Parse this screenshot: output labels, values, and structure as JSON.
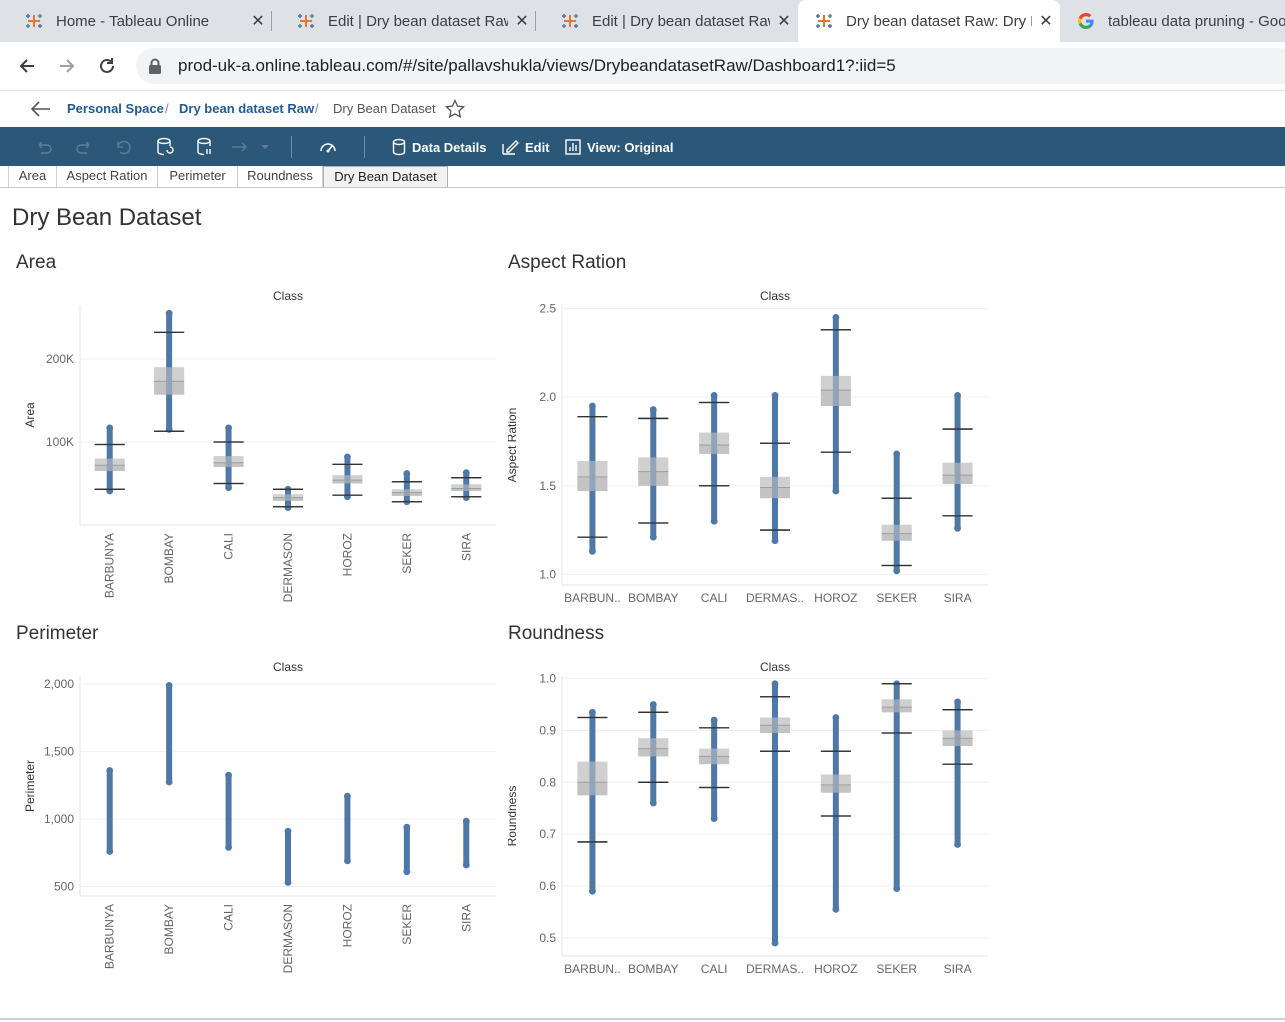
{
  "browser": {
    "tabs": [
      {
        "title": "Home - Tableau Online",
        "icon": "tableau-icon",
        "active": false
      },
      {
        "title": "Edit | Dry bean dataset Raw",
        "icon": "tableau-icon",
        "active": false
      },
      {
        "title": "Edit | Dry bean dataset Raw",
        "icon": "tableau-icon",
        "active": false
      },
      {
        "title": "Dry bean dataset Raw: Dry Bean Dataset",
        "icon": "tableau-icon",
        "active": true
      },
      {
        "title": "tableau data pruning - Google Search",
        "icon": "google-icon",
        "active": false
      }
    ],
    "url": "prod-uk-a.online.tableau.com/#/site/pallavshukla/views/DrybeandatasetRaw/Dashboard1?:iid=5"
  },
  "breadcrumb": {
    "items": [
      "Personal Space",
      "Dry bean dataset Raw",
      "Dry Bean Dataset"
    ]
  },
  "toolbar": {
    "data_details": "Data Details",
    "edit": "Edit",
    "view": "View: Original"
  },
  "sheet_tabs": [
    "Area",
    "Aspect Ration",
    "Perimeter",
    "Roundness",
    "Dry Bean Dataset"
  ],
  "dashboard": {
    "title": "Dry Bean Dataset"
  },
  "colors": {
    "tableau_bar": "#2b5879",
    "mark": "#4e79a7",
    "link": "#1f5b99"
  },
  "chart_data": [
    {
      "type": "scatter",
      "title": "Area",
      "header": "Class",
      "ylabel": "Area",
      "categories": [
        "BARBUNYA",
        "BOMBAY",
        "CALI",
        "DERMASON",
        "HOROZ",
        "SEKER",
        "SIRA"
      ],
      "yticks": [
        {
          "v": 100000,
          "label": "100K"
        },
        {
          "v": 200000,
          "label": "200K"
        }
      ],
      "ylim": [
        0,
        265000
      ],
      "ranges": [
        [
          41000,
          117000
        ],
        [
          115000,
          255000
        ],
        [
          45000,
          117000
        ],
        [
          21000,
          43000
        ],
        [
          34000,
          82000
        ],
        [
          28000,
          62000
        ],
        [
          33000,
          63000
        ]
      ],
      "boxplot": [
        {
          "q1": 65000,
          "median": 72000,
          "q3": 80000,
          "wl": 43000,
          "wh": 97000
        },
        {
          "q1": 157000,
          "median": 173000,
          "q3": 190000,
          "wl": 113000,
          "wh": 232000
        },
        {
          "q1": 70000,
          "median": 75000,
          "q3": 83000,
          "wl": 50000,
          "wh": 100000
        },
        {
          "q1": 29000,
          "median": 33000,
          "q3": 37000,
          "wl": 22000,
          "wh": 43000
        },
        {
          "q1": 50000,
          "median": 54000,
          "q3": 60000,
          "wl": 36000,
          "wh": 73000
        },
        {
          "q1": 35000,
          "median": 39000,
          "q3": 43000,
          "wl": 28000,
          "wh": 52000
        },
        {
          "q1": 41000,
          "median": 44000,
          "q3": 49000,
          "wl": 34000,
          "wh": 57000
        }
      ]
    },
    {
      "type": "scatter",
      "title": "Aspect Ration",
      "header": "Class",
      "ylabel": "Aspect Ration",
      "categories": [
        "BARBUN..",
        "BOMBAY",
        "CALI",
        "DERMAS..",
        "HOROZ",
        "SEKER",
        "SIRA"
      ],
      "yticks": [
        {
          "v": 1.0,
          "label": "1.0"
        },
        {
          "v": 1.5,
          "label": "1.5"
        },
        {
          "v": 2.0,
          "label": "2.0"
        },
        {
          "v": 2.5,
          "label": "2.5"
        }
      ],
      "ylim": [
        0.94,
        2.52
      ],
      "ranges": [
        [
          1.13,
          1.95
        ],
        [
          1.21,
          1.93
        ],
        [
          1.3,
          2.01
        ],
        [
          1.19,
          2.01
        ],
        [
          1.47,
          2.45
        ],
        [
          1.02,
          1.68
        ],
        [
          1.26,
          2.01
        ]
      ],
      "boxplot": [
        {
          "q1": 1.47,
          "median": 1.55,
          "q3": 1.64,
          "wl": 1.21,
          "wh": 1.89
        },
        {
          "q1": 1.5,
          "median": 1.58,
          "q3": 1.66,
          "wl": 1.29,
          "wh": 1.88
        },
        {
          "q1": 1.68,
          "median": 1.73,
          "q3": 1.8,
          "wl": 1.5,
          "wh": 1.97
        },
        {
          "q1": 1.43,
          "median": 1.49,
          "q3": 1.55,
          "wl": 1.25,
          "wh": 1.74
        },
        {
          "q1": 1.95,
          "median": 2.04,
          "q3": 2.12,
          "wl": 1.69,
          "wh": 2.38
        },
        {
          "q1": 1.19,
          "median": 1.23,
          "q3": 1.28,
          "wl": 1.05,
          "wh": 1.43
        },
        {
          "q1": 1.51,
          "median": 1.56,
          "q3": 1.63,
          "wl": 1.33,
          "wh": 1.82
        }
      ]
    },
    {
      "type": "scatter",
      "title": "Perimeter",
      "header": "Class",
      "ylabel": "Perimeter",
      "categories": [
        "BARBUNYA",
        "BOMBAY",
        "CALI",
        "DERMASON",
        "HOROZ",
        "SEKER",
        "SIRA"
      ],
      "yticks": [
        {
          "v": 500,
          "label": "500"
        },
        {
          "v": 1000,
          "label": "1,000"
        },
        {
          "v": 1500,
          "label": "1,500"
        },
        {
          "v": 2000,
          "label": "2,000"
        }
      ],
      "ylim": [
        430,
        2060
      ],
      "ranges": [
        [
          760,
          1360
        ],
        [
          1275,
          1990
        ],
        [
          790,
          1325
        ],
        [
          530,
          910
        ],
        [
          690,
          1170
        ],
        [
          610,
          940
        ],
        [
          660,
          985
        ]
      ],
      "boxplot": null
    },
    {
      "type": "scatter",
      "title": "Roundness",
      "header": "Class",
      "ylabel": "Roundness",
      "categories": [
        "BARBUN..",
        "BOMBAY",
        "CALI",
        "DERMAS..",
        "HOROZ",
        "SEKER",
        "SIRA"
      ],
      "yticks": [
        {
          "v": 0.5,
          "label": "0.5"
        },
        {
          "v": 0.6,
          "label": "0.6"
        },
        {
          "v": 0.7,
          "label": "0.7"
        },
        {
          "v": 0.8,
          "label": "0.8"
        },
        {
          "v": 0.9,
          "label": "0.9"
        },
        {
          "v": 1.0,
          "label": "1.0"
        }
      ],
      "ylim": [
        0.465,
        1.005
      ],
      "ranges": [
        [
          0.59,
          0.935
        ],
        [
          0.76,
          0.95
        ],
        [
          0.73,
          0.92
        ],
        [
          0.49,
          0.99
        ],
        [
          0.555,
          0.925
        ],
        [
          0.595,
          0.99
        ],
        [
          0.68,
          0.955
        ]
      ],
      "boxplot": [
        {
          "q1": 0.775,
          "median": 0.8,
          "q3": 0.84,
          "wl": 0.685,
          "wh": 0.925
        },
        {
          "q1": 0.85,
          "median": 0.865,
          "q3": 0.885,
          "wl": 0.8,
          "wh": 0.935
        },
        {
          "q1": 0.835,
          "median": 0.85,
          "q3": 0.865,
          "wl": 0.79,
          "wh": 0.905
        },
        {
          "q1": 0.895,
          "median": 0.91,
          "q3": 0.925,
          "wl": 0.86,
          "wh": 0.965
        },
        {
          "q1": 0.78,
          "median": 0.795,
          "q3": 0.815,
          "wl": 0.735,
          "wh": 0.86
        },
        {
          "q1": 0.935,
          "median": 0.945,
          "q3": 0.96,
          "wl": 0.895,
          "wh": 0.99
        },
        {
          "q1": 0.87,
          "median": 0.885,
          "q3": 0.9,
          "wl": 0.835,
          "wh": 0.94
        }
      ]
    }
  ]
}
